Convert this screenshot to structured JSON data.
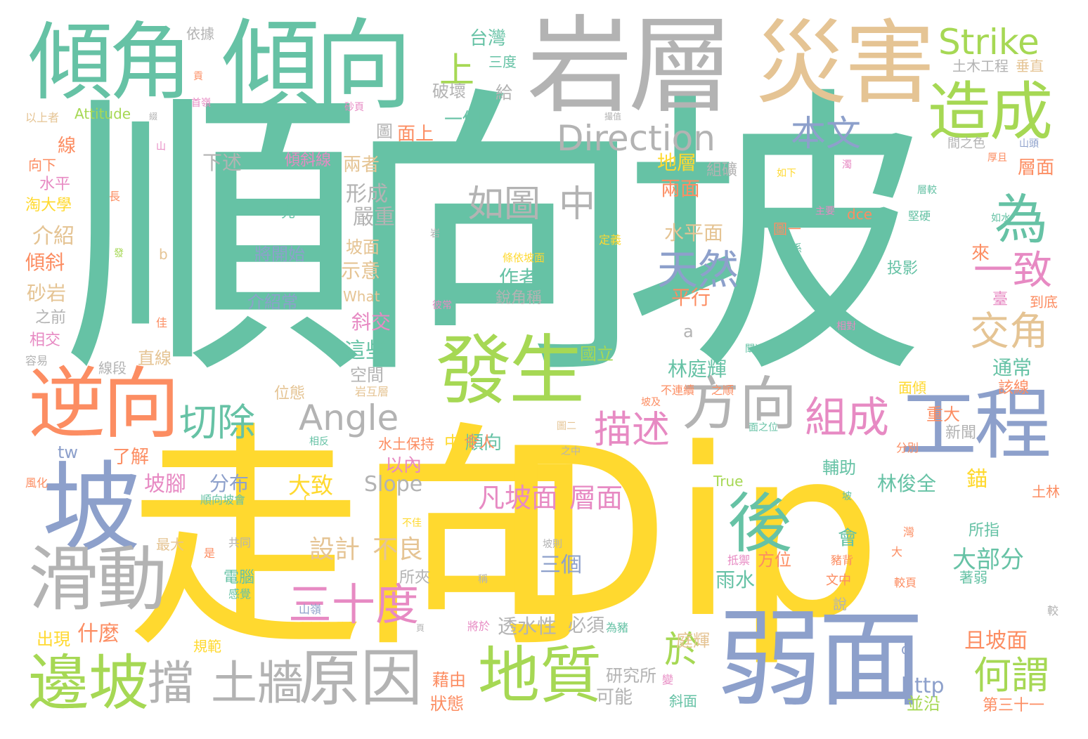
{
  "palette": {
    "teal": "#66c2a5",
    "yellow": "#ffd92f",
    "blue": "#8da0cb",
    "green": "#a6d854",
    "orange": "#fc8d62",
    "tan": "#e5c494",
    "gray": "#b3b3b3",
    "pink": "#e78ac3"
  },
  "words": [
    {
      "text": "順向坡",
      "color": "teal"
    },
    {
      "text": "走向",
      "color": "yellow"
    },
    {
      "text": "Dip",
      "color": "yellow"
    },
    {
      "text": "岩層",
      "color": "gray"
    },
    {
      "text": "災害",
      "color": "tan"
    },
    {
      "text": "傾角",
      "color": "teal"
    },
    {
      "text": "傾向",
      "color": "teal"
    },
    {
      "text": "弱面",
      "color": "blue"
    },
    {
      "text": "工程",
      "color": "blue"
    },
    {
      "text": "坡",
      "color": "blue"
    },
    {
      "text": "逆向",
      "color": "orange"
    },
    {
      "text": "發生",
      "color": "green"
    },
    {
      "text": "造成",
      "color": "green"
    },
    {
      "text": "滑動",
      "color": "gray"
    },
    {
      "text": "邊坡",
      "color": "green"
    },
    {
      "text": "地質",
      "color": "green"
    },
    {
      "text": "原因",
      "color": "gray"
    },
    {
      "text": "方向",
      "color": "gray"
    },
    {
      "text": "後",
      "color": "teal"
    },
    {
      "text": "Strike",
      "color": "green"
    },
    {
      "text": "Direction",
      "color": "gray"
    },
    {
      "text": "擋",
      "color": "gray"
    },
    {
      "text": "土牆",
      "color": "gray"
    },
    {
      "text": "三十度",
      "color": "pink"
    },
    {
      "text": "組成",
      "color": "pink"
    },
    {
      "text": "為",
      "color": "teal"
    },
    {
      "text": "Angle",
      "color": "gray"
    },
    {
      "text": "天然",
      "color": "blue"
    },
    {
      "text": "本文",
      "color": "blue"
    },
    {
      "text": "如圖",
      "color": "gray"
    },
    {
      "text": "中",
      "color": "gray"
    },
    {
      "text": "切除",
      "color": "teal"
    },
    {
      "text": "描述",
      "color": "pink"
    },
    {
      "text": "一致",
      "color": "pink"
    },
    {
      "text": "交角",
      "color": "tan"
    },
    {
      "text": "何謂",
      "color": "green"
    },
    {
      "text": "凡坡面",
      "color": "pink"
    },
    {
      "text": "層面",
      "color": "pink"
    },
    {
      "text": "於",
      "color": "green"
    },
    {
      "text": "上",
      "color": "green"
    },
    {
      "text": "設計",
      "color": "tan"
    },
    {
      "text": "不良",
      "color": "tan"
    },
    {
      "text": "大部分",
      "color": "teal"
    },
    {
      "text": "Slope",
      "color": "gray"
    },
    {
      "text": "台灣",
      "color": "teal"
    },
    {
      "text": "三度",
      "color": "teal"
    },
    {
      "text": "破壞",
      "color": "gray"
    },
    {
      "text": "給",
      "color": "gray"
    },
    {
      "text": "一個",
      "color": "teal"
    },
    {
      "text": "面上",
      "color": "orange"
    },
    {
      "text": "圖",
      "color": "gray"
    },
    {
      "text": "下述",
      "color": "gray"
    },
    {
      "text": "傾斜線",
      "color": "pink"
    },
    {
      "text": "兩者",
      "color": "tan"
    },
    {
      "text": "地層",
      "color": "yellow"
    },
    {
      "text": "組礦",
      "color": "gray"
    },
    {
      "text": "層面",
      "color": "orange"
    },
    {
      "text": "兩面",
      "color": "orange"
    },
    {
      "text": "形成",
      "color": "gray"
    },
    {
      "text": "嚴重",
      "color": "gray"
    },
    {
      "text": "先",
      "color": "teal"
    },
    {
      "text": "將開始",
      "color": "blue"
    },
    {
      "text": "介紹常",
      "color": "blue"
    },
    {
      "text": "坡面",
      "color": "tan"
    },
    {
      "text": "示意",
      "color": "tan"
    },
    {
      "text": "水平面",
      "color": "tan"
    },
    {
      "text": "平行",
      "color": "orange"
    },
    {
      "text": "作者",
      "color": "teal"
    },
    {
      "text": "銳角稱",
      "color": "gray"
    },
    {
      "text": "條依坡面",
      "color": "yellow"
    },
    {
      "text": "斜交",
      "color": "pink"
    },
    {
      "text": "這些",
      "color": "teal"
    },
    {
      "text": "空間",
      "color": "gray"
    },
    {
      "text": "林庭輝",
      "color": "teal"
    },
    {
      "text": "林俊全",
      "color": "teal"
    },
    {
      "text": "通常",
      "color": "teal"
    },
    {
      "text": "該線",
      "color": "orange"
    },
    {
      "text": "分布",
      "color": "blue"
    },
    {
      "text": "大致",
      "color": "yellow"
    },
    {
      "text": "以內",
      "color": "pink"
    },
    {
      "text": "順向",
      "color": "teal"
    },
    {
      "text": "水土保持",
      "color": "orange"
    },
    {
      "text": "坡腳",
      "color": "pink"
    },
    {
      "text": "了解",
      "color": "orange"
    },
    {
      "text": "三個",
      "color": "blue"
    },
    {
      "text": "透水性",
      "color": "gray"
    },
    {
      "text": "必須",
      "color": "gray"
    },
    {
      "text": "雨水",
      "color": "teal"
    },
    {
      "text": "方位",
      "color": "orange"
    },
    {
      "text": "庭輝",
      "color": "tan"
    },
    {
      "text": "且坡面",
      "color": "orange"
    },
    {
      "text": "可能",
      "color": "gray"
    },
    {
      "text": "研究所",
      "color": "gray"
    },
    {
      "text": "斜面",
      "color": "teal"
    },
    {
      "text": "並沿",
      "color": "green"
    },
    {
      "text": "第三十一",
      "color": "orange"
    },
    {
      "text": "http",
      "color": "blue"
    },
    {
      "text": "藉由",
      "color": "orange"
    },
    {
      "text": "狀態",
      "color": "orange"
    },
    {
      "text": "什麼",
      "color": "orange"
    },
    {
      "text": "出現",
      "color": "yellow"
    },
    {
      "text": "規範",
      "color": "yellow"
    },
    {
      "text": "電腦",
      "color": "teal"
    },
    {
      "text": "感覺",
      "color": "teal"
    },
    {
      "text": "山嶺",
      "color": "blue"
    },
    {
      "text": "所夾",
      "color": "gray"
    },
    {
      "text": "直線",
      "color": "tan"
    },
    {
      "text": "線段",
      "color": "gray"
    },
    {
      "text": "位態",
      "color": "tan"
    },
    {
      "text": "容易",
      "color": "gray"
    },
    {
      "text": "相交",
      "color": "pink"
    },
    {
      "text": "之前",
      "color": "gray"
    },
    {
      "text": "砂岩",
      "color": "tan"
    },
    {
      "text": "傾斜",
      "color": "orange"
    },
    {
      "text": "介紹",
      "color": "tan"
    },
    {
      "text": "淘大學",
      "color": "yellow"
    },
    {
      "text": "水平",
      "color": "pink"
    },
    {
      "text": "向下",
      "color": "orange"
    },
    {
      "text": "線",
      "color": "orange"
    },
    {
      "text": "以上者",
      "color": "tan"
    },
    {
      "text": "Attitude",
      "color": "green"
    },
    {
      "text": "依據",
      "color": "gray"
    },
    {
      "text": "土木工程",
      "color": "gray"
    },
    {
      "text": "垂直",
      "color": "tan"
    },
    {
      "text": "間之色",
      "color": "gray"
    },
    {
      "text": "山頭",
      "color": "blue"
    },
    {
      "text": "厚且",
      "color": "orange"
    },
    {
      "text": "層較",
      "color": "teal"
    },
    {
      "text": "堅硬",
      "color": "teal"
    },
    {
      "text": "主要",
      "color": "pink"
    },
    {
      "text": "係",
      "color": "teal"
    },
    {
      "text": "dce",
      "color": "orange"
    },
    {
      "text": "圖一",
      "color": "orange"
    },
    {
      "text": "如下",
      "color": "yellow"
    },
    {
      "text": "來",
      "color": "orange"
    },
    {
      "text": "投影",
      "color": "teal"
    },
    {
      "text": "臺",
      "color": "pink"
    },
    {
      "text": "到底",
      "color": "orange"
    },
    {
      "text": "重大",
      "color": "orange"
    },
    {
      "text": "面傾",
      "color": "yellow"
    },
    {
      "text": "新聞",
      "color": "gray"
    },
    {
      "text": "分別",
      "color": "orange"
    },
    {
      "text": "輔助",
      "color": "teal"
    },
    {
      "text": "錨",
      "color": "yellow"
    },
    {
      "text": "True",
      "color": "green"
    },
    {
      "text": "會",
      "color": "teal"
    },
    {
      "text": "所指",
      "color": "teal"
    },
    {
      "text": "著弱",
      "color": "teal"
    },
    {
      "text": "較頁",
      "color": "orange"
    },
    {
      "text": "土林",
      "color": "orange"
    },
    {
      "text": "文中",
      "color": "orange"
    },
    {
      "text": "說",
      "color": "gray"
    },
    {
      "text": "抵禦",
      "color": "pink"
    },
    {
      "text": "豬背",
      "color": "orange"
    },
    {
      "text": "令人",
      "color": "orange"
    },
    {
      "text": "中",
      "color": "yellow"
    },
    {
      "text": "最大",
      "color": "tan"
    },
    {
      "text": "共同",
      "color": "gray"
    },
    {
      "text": "是",
      "color": "orange"
    },
    {
      "text": "風化",
      "color": "orange"
    },
    {
      "text": "tw",
      "color": "blue"
    },
    {
      "text": "What",
      "color": "tan"
    },
    {
      "text": "a",
      "color": "gray"
    },
    {
      "text": "b",
      "color": "tan"
    },
    {
      "text": "c",
      "color": "yellow"
    },
    {
      "text": "d",
      "color": "blue"
    },
    {
      "text": "is",
      "color": "teal"
    },
    {
      "text": "長",
      "color": "orange"
    },
    {
      "text": "國立",
      "color": "green"
    },
    {
      "text": "下",
      "color": "teal"
    },
    {
      "text": "定義",
      "color": "yellow"
    },
    {
      "text": "不連續",
      "color": "orange"
    },
    {
      "text": "之順",
      "color": "orange"
    },
    {
      "text": "岩互層",
      "color": "tan"
    },
    {
      "text": "闡述",
      "color": "teal"
    },
    {
      "text": "相對",
      "color": "pink"
    },
    {
      "text": "順向坡會",
      "color": "teal"
    },
    {
      "text": "相反",
      "color": "teal"
    },
    {
      "text": "之中",
      "color": "gray"
    },
    {
      "text": "面之位",
      "color": "teal"
    },
    {
      "text": "圖二",
      "color": "tan"
    },
    {
      "text": "坡及",
      "color": "orange"
    },
    {
      "text": "將於",
      "color": "pink"
    },
    {
      "text": "為豬",
      "color": "teal"
    },
    {
      "text": "不佳",
      "color": "yellow"
    },
    {
      "text": "發",
      "color": "green"
    },
    {
      "text": "岩",
      "color": "gray"
    },
    {
      "text": "坡則",
      "color": "gray"
    },
    {
      "text": "稱",
      "color": "gray"
    },
    {
      "text": "彼常",
      "color": "pink"
    },
    {
      "text": "佳",
      "color": "orange"
    },
    {
      "text": "濁",
      "color": "pink"
    },
    {
      "text": "較",
      "color": "gray"
    },
    {
      "text": "灣",
      "color": "orange"
    },
    {
      "text": "大",
      "color": "orange"
    },
    {
      "text": "坡",
      "color": "teal"
    },
    {
      "text": "如水",
      "color": "teal"
    },
    {
      "text": "山",
      "color": "pink"
    },
    {
      "text": "綴",
      "color": "gray"
    },
    {
      "text": "貢",
      "color": "orange"
    },
    {
      "text": "首嶺",
      "color": "pink"
    },
    {
      "text": "砂頁",
      "color": "pink"
    },
    {
      "text": "撮值",
      "color": "gray"
    },
    {
      "text": "頁",
      "color": "gray"
    },
    {
      "text": "變",
      "color": "pink"
    }
  ]
}
